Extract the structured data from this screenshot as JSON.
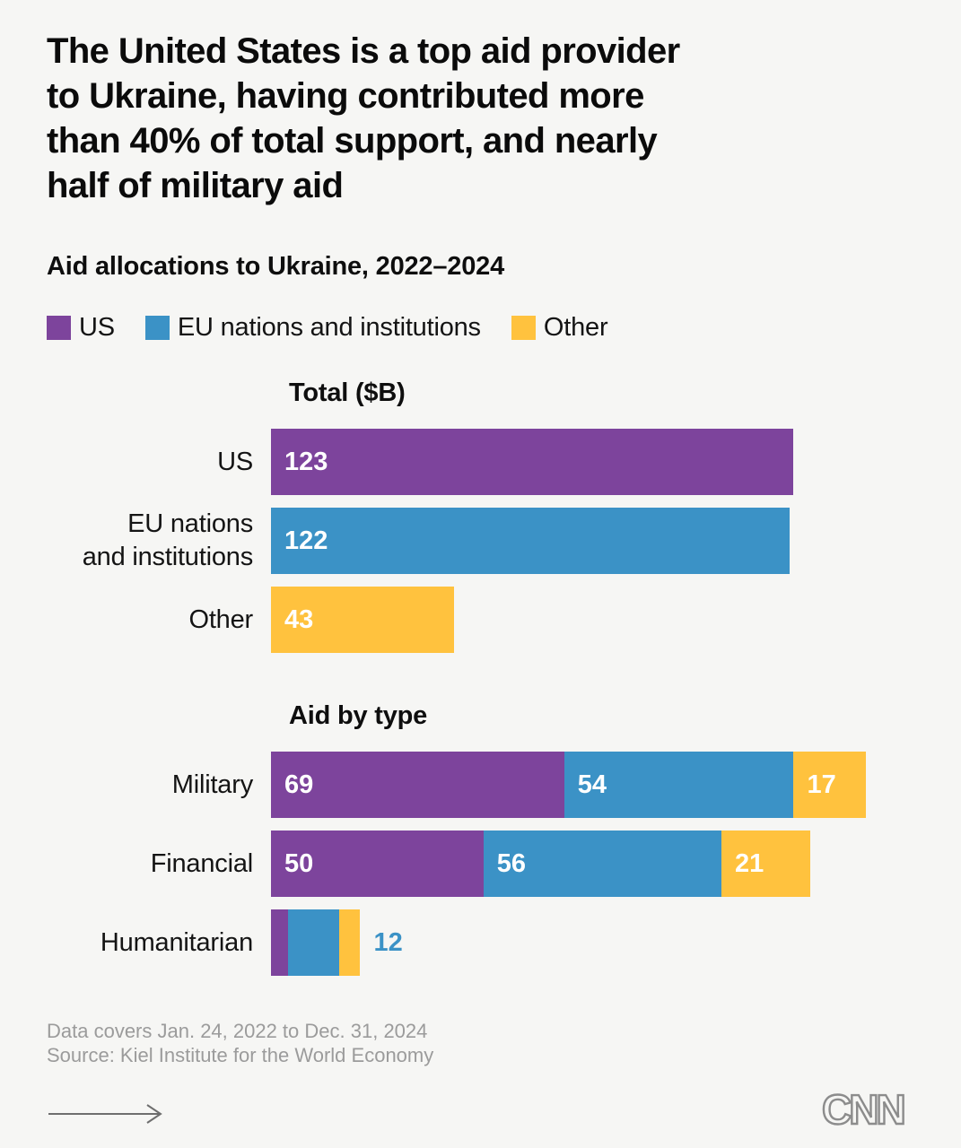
{
  "page": {
    "title": "The United States is a top aid provider\nto Ukraine, having contributed more\nthan 40% of total support, and nearly\nhalf of military aid",
    "subtitle": "Aid allocations to Ukraine, 2022–2024",
    "footer_line1": "Data covers Jan. 24, 2022 to Dec. 31, 2024",
    "footer_line2": "Source: Kiel Institute for the World Economy",
    "brand": "CNN",
    "background": "#f6f6f4"
  },
  "colors": {
    "us": "#7d449c",
    "eu": "#3b92c6",
    "other": "#ffc23e",
    "title_text": "#0b0b0b",
    "body_text": "#141414",
    "bar_label": "#ffffff",
    "footer_text": "#9b9b9b",
    "arrow": "#6e6e6e",
    "logo": "#8c8c8c"
  },
  "icons": {
    "next_arrow": "long-right-arrow",
    "brand_logo": "cnn-logo"
  },
  "legend": [
    {
      "id": "us",
      "label": "US"
    },
    {
      "id": "eu",
      "label": "EU nations and institutions"
    },
    {
      "id": "other",
      "label": "Other"
    }
  ],
  "chart_data": [
    {
      "type": "bar",
      "title": "Total ($B)",
      "categories": [
        "US",
        "EU nations and institutions",
        "Other"
      ],
      "categories_display": [
        [
          "US"
        ],
        [
          "EU nations",
          "and institutions"
        ],
        [
          "Other"
        ]
      ],
      "series_ids": [
        "us",
        "eu",
        "other"
      ],
      "values": [
        123,
        122,
        43
      ],
      "value_labels": [
        "123",
        "122",
        "43"
      ],
      "xlim": [
        0,
        140
      ],
      "grid": false,
      "legend_position": "top",
      "orientation": "horizontal"
    },
    {
      "type": "stacked-bar",
      "title": "Aid by type",
      "categories": [
        "Military",
        "Financial",
        "Humanitarian"
      ],
      "series": [
        {
          "id": "us",
          "name": "US",
          "values": [
            69,
            50,
            4
          ]
        },
        {
          "id": "eu",
          "name": "EU nations and institutions",
          "values": [
            54,
            56,
            12
          ]
        },
        {
          "id": "other",
          "name": "Other",
          "values": [
            17,
            21,
            5
          ]
        }
      ],
      "row_label_mode": [
        "inside",
        "inside",
        "outside"
      ],
      "outside_labels": [
        null,
        null,
        {
          "text": "12",
          "series": "eu"
        }
      ],
      "xlim": [
        0,
        140
      ],
      "grid": false,
      "orientation": "horizontal"
    }
  ]
}
